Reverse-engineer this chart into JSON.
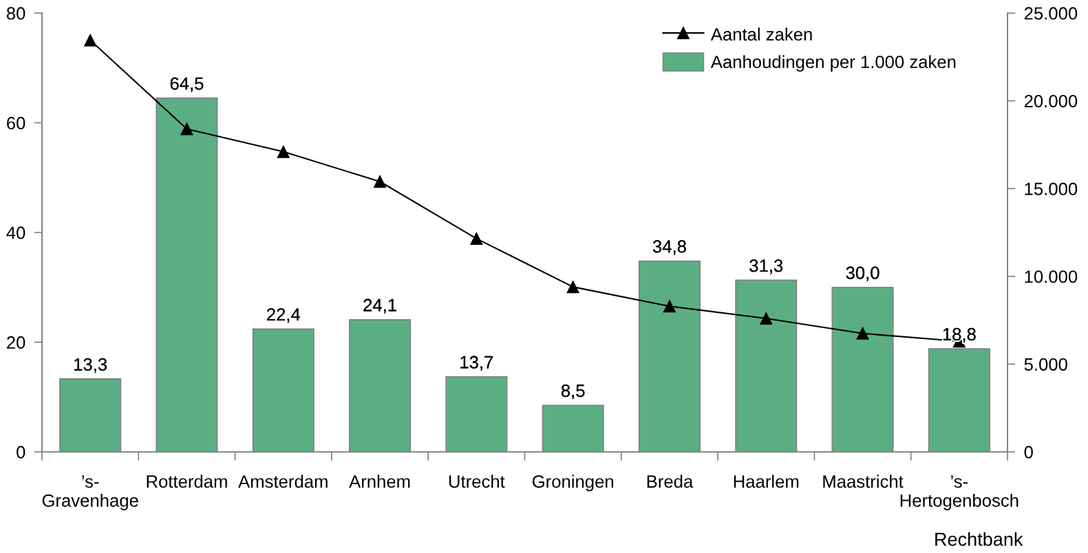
{
  "chart_data": {
    "type": "bar",
    "categories": [
      "’s-\nGravenhage",
      "Rotterdam",
      "Amsterdam",
      "Arnhem",
      "Utrecht",
      "Groningen",
      "Breda",
      "Haarlem",
      "Maastricht",
      "’s-\nHertogenbosch"
    ],
    "series": [
      {
        "name": "Aantal zaken",
        "type": "line",
        "axis": "y2",
        "color": "#000000",
        "marker": "triangle",
        "line_style": "solid",
        "values": [
          23450,
          18400,
          17100,
          15400,
          12150,
          9400,
          8300,
          7600,
          6750,
          6300
        ]
      },
      {
        "name": "Aanhoudingen per 1.000 zaken",
        "color": "#5bae83",
        "values": [
          13.3,
          64.5,
          22.4,
          24.1,
          13.7,
          8.5,
          34.8,
          31.3,
          30.0,
          18.8
        ],
        "value_labels": [
          "13,3",
          "64,5",
          "22,4",
          "24,1",
          "13,7",
          "8,5",
          "34,8",
          "31,3",
          "30,0",
          "18,8"
        ]
      }
    ],
    "xlabel": "Rechtbank",
    "ylim": [
      0,
      80
    ],
    "yticks": [
      0,
      20,
      40,
      60,
      80
    ],
    "y2lim": [
      0,
      25000
    ],
    "y2ticks": [
      0,
      {
        "value": 5000,
        "label": "5.000"
      },
      {
        "value": 10000,
        "label": "10.000"
      },
      {
        "value": 15000,
        "label": "15.000"
      },
      {
        "value": 20000,
        "label": "20.000"
      },
      {
        "value": 25000,
        "label": "25.000"
      }
    ],
    "grid": false,
    "legend": "top right"
  }
}
